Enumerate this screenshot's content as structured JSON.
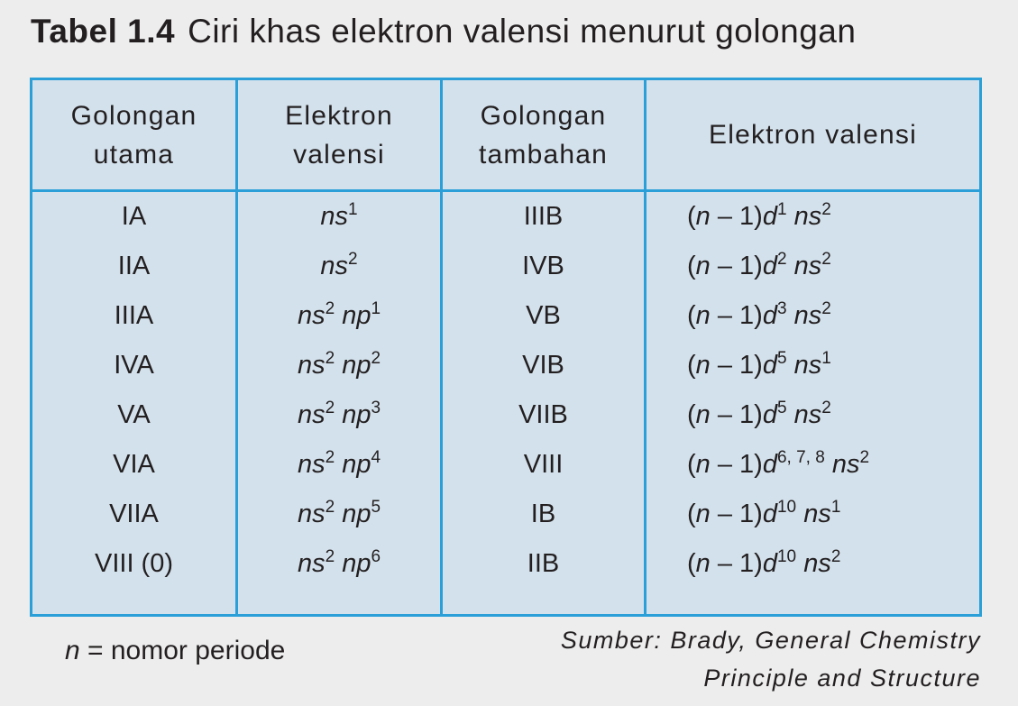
{
  "title": {
    "label": "Tabel 1.4",
    "text": "Ciri khas elektron valensi menurut golongan"
  },
  "headers": {
    "main_group": [
      "Golongan",
      "utama"
    ],
    "main_valence": [
      "Elektron",
      "valensi"
    ],
    "trans_group": [
      "Golongan",
      "tambahan"
    ],
    "trans_valence": "Elektron valensi"
  },
  "main_groups": [
    "IA",
    "IIA",
    "IIIA",
    "IVA",
    "VA",
    "VIA",
    "VIIA",
    "VIII (0)"
  ],
  "main_valence": [
    {
      "ns": "1",
      "np": ""
    },
    {
      "ns": "2",
      "np": ""
    },
    {
      "ns": "2",
      "np": "1"
    },
    {
      "ns": "2",
      "np": "2"
    },
    {
      "ns": "2",
      "np": "3"
    },
    {
      "ns": "2",
      "np": "4"
    },
    {
      "ns": "2",
      "np": "5"
    },
    {
      "ns": "2",
      "np": "6"
    }
  ],
  "transition_groups": [
    "IIIB",
    "IVB",
    "VB",
    "VIB",
    "VIIB",
    "VIII",
    "IB",
    "IIB"
  ],
  "transition_valence": [
    {
      "d": "1",
      "ns": "2"
    },
    {
      "d": "2",
      "ns": "2"
    },
    {
      "d": "3",
      "ns": "2"
    },
    {
      "d": "5",
      "ns": "1"
    },
    {
      "d": "5",
      "ns": "2"
    },
    {
      "d": "6, 7, 8",
      "ns": "2"
    },
    {
      "d": "10",
      "ns": "1"
    },
    {
      "d": "10",
      "ns": "2"
    }
  ],
  "formula": {
    "n": "n",
    "s_label": "s",
    "p_label": "p",
    "open": "(",
    "minus": " – 1)",
    "d_label": "d"
  },
  "footnote": {
    "var": "n",
    "text": " = nomor periode"
  },
  "source": [
    "Sumber: Brady, General Chemistry",
    "Principle and Structure"
  ],
  "colors": {
    "border": "#2a9fd8",
    "cell_bg": "#d3e1ec",
    "page_bg": "#ededed",
    "text": "#231f20"
  }
}
